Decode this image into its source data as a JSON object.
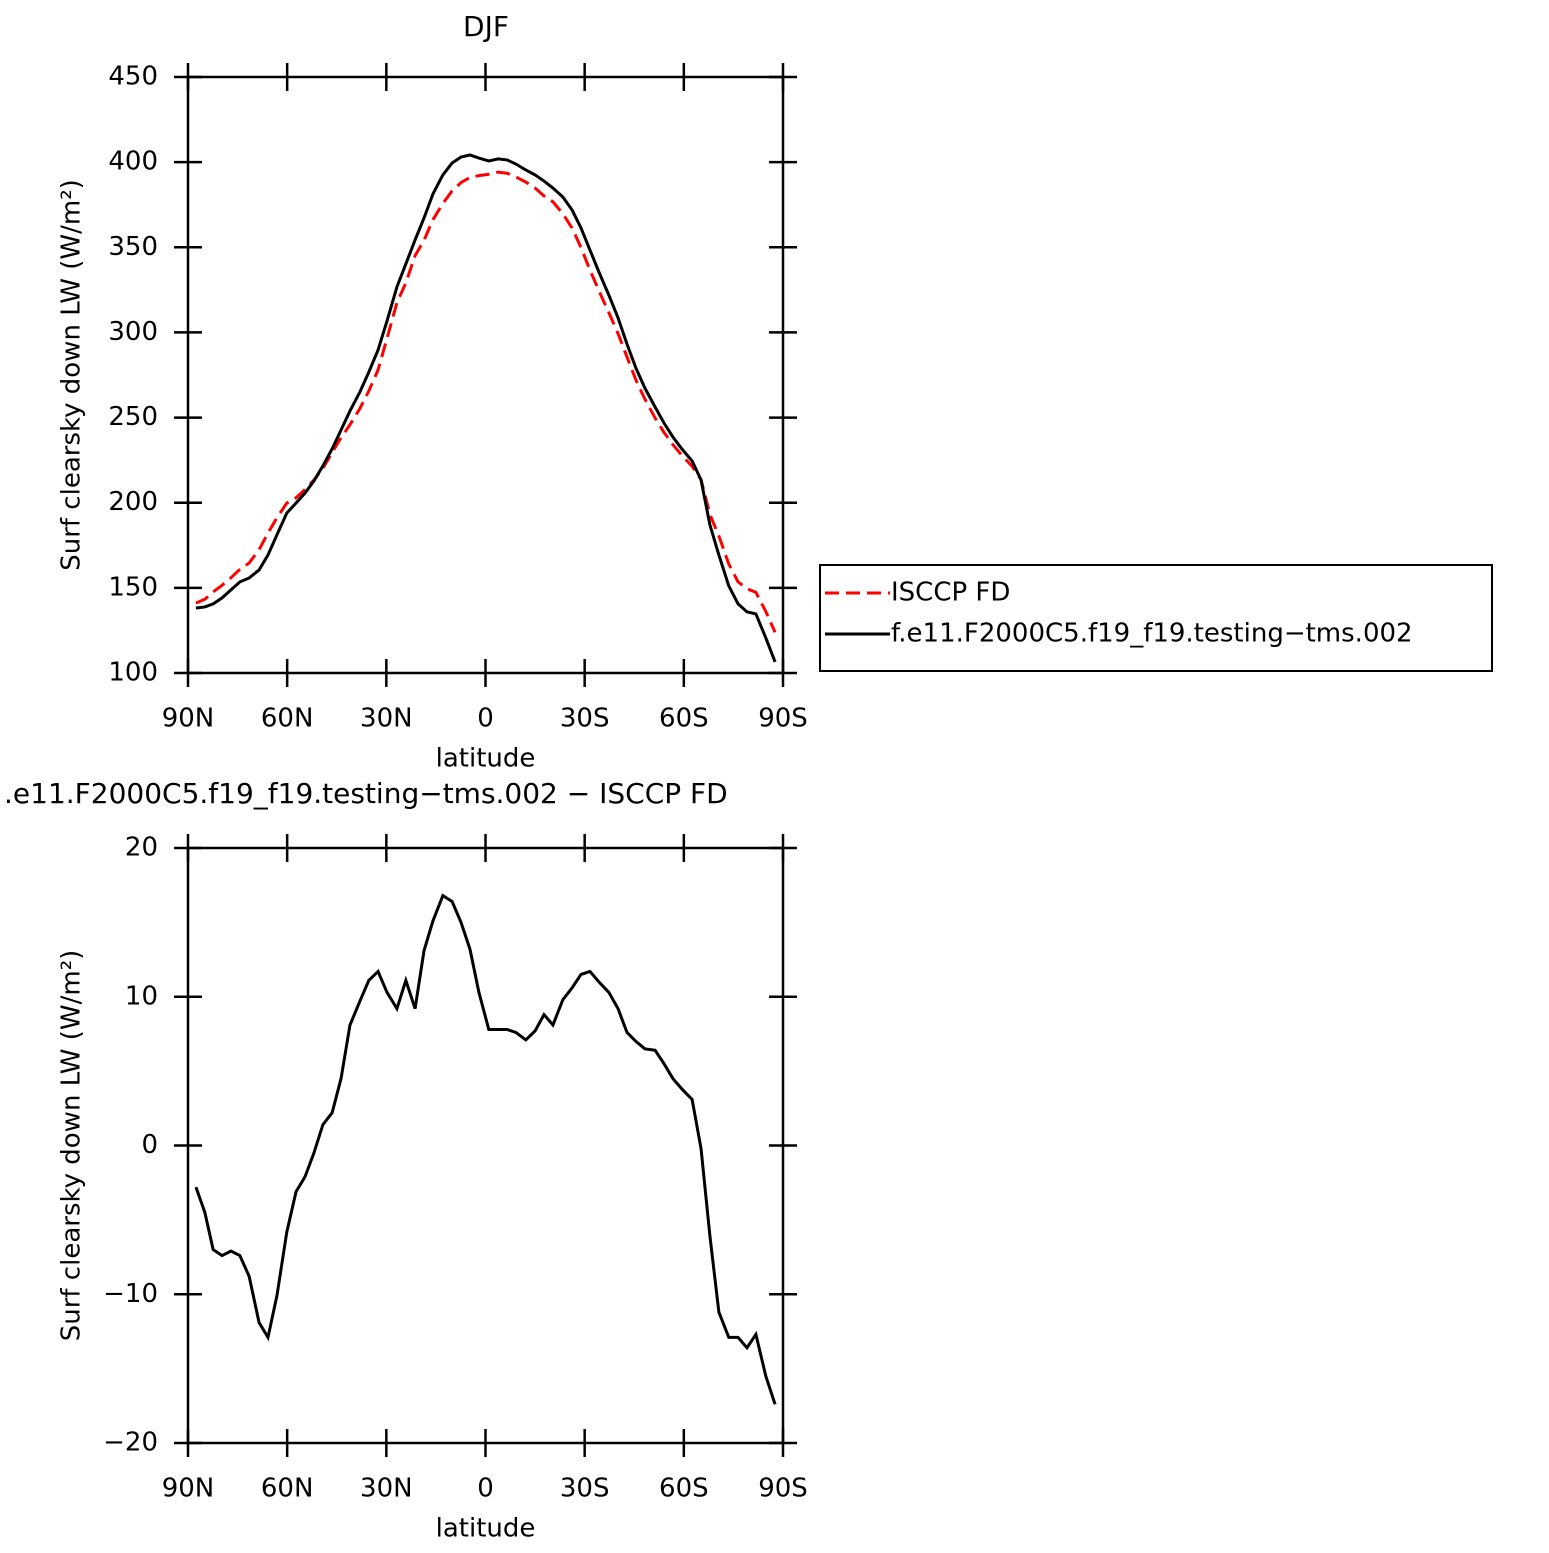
{
  "chart_data": [
    {
      "type": "line",
      "title": "DJF",
      "xlabel": "latitude",
      "ylabel": "Surf clearsky down LW (W/m²)",
      "xlim": [
        90,
        -90
      ],
      "xticks": [
        {
          "value": 90,
          "label": "90N"
        },
        {
          "value": 60,
          "label": "60N"
        },
        {
          "value": 30,
          "label": "30N"
        },
        0,
        {
          "value": -30,
          "label": "30S"
        },
        {
          "value": -60,
          "label": "60S"
        },
        {
          "value": -90,
          "label": "90S"
        }
      ],
      "ylim": [
        100,
        450
      ],
      "yticks": [
        100,
        150,
        200,
        250,
        300,
        350,
        400,
        450
      ],
      "legend": "right",
      "x": [
        87.6,
        84.9,
        82.4,
        79.7,
        77.0,
        74.3,
        71.5,
        68.5,
        65.8,
        63.1,
        60.1,
        57.3,
        54.6,
        51.9,
        49.2,
        46.4,
        43.7,
        41.0,
        38.0,
        35.3,
        32.5,
        29.8,
        26.8,
        24.1,
        21.3,
        18.6,
        15.9,
        12.9,
        10.1,
        7.4,
        4.7,
        2.0,
        -1.0,
        -3.8,
        -6.5,
        -9.2,
        -12.2,
        -15.0,
        -17.7,
        -20.4,
        -23.4,
        -26.2,
        -28.9,
        -31.6,
        -34.3,
        -37.3,
        -40.1,
        -42.8,
        -45.5,
        -48.2,
        -51.3,
        -54.0,
        -56.7,
        -59.4,
        -62.5,
        -65.2,
        -67.9,
        -70.6,
        -73.6,
        -76.4,
        -79.1,
        -81.8,
        -84.8,
        -87.6
      ],
      "series": [
        {
          "name": "ISCCP FD",
          "color": "#ff0000",
          "linestyle": "dashed",
          "values": [
            141.0,
            143.3,
            147.6,
            151.5,
            155.9,
            160.9,
            164.6,
            172.4,
            182.2,
            191.2,
            199.8,
            202.9,
            207.8,
            213.3,
            220.2,
            229.4,
            238.2,
            245.8,
            255.3,
            265.6,
            278.0,
            296.4,
            317.5,
            329.1,
            345.1,
            354.1,
            366.2,
            375.7,
            383.1,
            388.0,
            391.0,
            392.1,
            392.9,
            394.1,
            393.5,
            391.3,
            388.3,
            384.8,
            380.1,
            376.7,
            369.7,
            361.3,
            349.8,
            336.7,
            324.5,
            311.7,
            299.3,
            285.6,
            272.1,
            260.9,
            249.8,
            241.3,
            234.1,
            227.8,
            221.4,
            213.6,
            193.0,
            180.5,
            164.0,
            153.5,
            149.5,
            147.4,
            136.1,
            123.9
          ]
        },
        {
          "name": "f.e11.F2000C5.f19_f19.testing−tms.002",
          "color": "#000000",
          "linestyle": "solid",
          "values": [
            138.2,
            138.8,
            140.6,
            144.1,
            148.8,
            153.5,
            155.8,
            160.5,
            169.3,
            181.1,
            194.0,
            199.8,
            205.7,
            212.8,
            221.6,
            231.6,
            242.7,
            253.9,
            265.0,
            276.7,
            289.7,
            306.7,
            326.7,
            340.2,
            354.3,
            367.2,
            381.3,
            392.5,
            399.5,
            403.0,
            404.2,
            402.4,
            400.7,
            401.9,
            401.3,
            398.9,
            395.4,
            392.5,
            388.9,
            384.8,
            379.5,
            371.9,
            361.3,
            348.4,
            335.5,
            322.0,
            308.5,
            293.2,
            279.1,
            267.4,
            256.2,
            246.8,
            238.6,
            231.6,
            224.5,
            213.4,
            186.9,
            169.3,
            151.1,
            140.6,
            135.9,
            134.7,
            120.6,
            106.5
          ]
        }
      ]
    },
    {
      "type": "line",
      "title": ".e11.F2000C5.f19_f19.testing−tms.002 − ISCCP FD",
      "xlabel": "latitude",
      "ylabel": "Surf clearsky down LW (W/m²)",
      "xlim": [
        90,
        -90
      ],
      "xticks": [
        {
          "value": 90,
          "label": "90N"
        },
        {
          "value": 60,
          "label": "60N"
        },
        {
          "value": 30,
          "label": "30N"
        },
        0,
        {
          "value": -30,
          "label": "30S"
        },
        {
          "value": -60,
          "label": "60S"
        },
        {
          "value": -90,
          "label": "90S"
        }
      ],
      "ylim": [
        -20,
        20
      ],
      "yticks": [
        {
          "value": -20,
          "label": "−20"
        },
        {
          "value": -10,
          "label": "−10"
        },
        0,
        10,
        20
      ],
      "color": "#000000",
      "x": [
        87.6,
        84.9,
        82.4,
        79.7,
        77.0,
        74.3,
        71.5,
        68.5,
        65.8,
        63.1,
        60.1,
        57.3,
        54.6,
        51.9,
        49.2,
        46.4,
        43.7,
        41.0,
        38.0,
        35.3,
        32.5,
        29.8,
        26.8,
        24.1,
        21.3,
        18.6,
        15.9,
        12.9,
        10.1,
        7.4,
        4.7,
        2.0,
        -1.0,
        -3.8,
        -6.5,
        -9.2,
        -12.2,
        -15.0,
        -17.7,
        -20.4,
        -23.4,
        -26.2,
        -28.9,
        -31.6,
        -34.3,
        -37.3,
        -40.1,
        -42.8,
        -45.5,
        -48.2,
        -51.3,
        -54.0,
        -56.7,
        -59.4,
        -62.5,
        -65.2,
        -67.9,
        -70.6,
        -73.6,
        -76.4,
        -79.1,
        -81.8,
        -84.8,
        -87.6
      ],
      "values": [
        -2.8,
        -4.5,
        -7.0,
        -7.4,
        -7.1,
        -7.4,
        -8.8,
        -11.9,
        -12.9,
        -10.1,
        -5.8,
        -3.1,
        -2.1,
        -0.5,
        1.4,
        2.2,
        4.5,
        8.1,
        9.7,
        11.1,
        11.7,
        10.3,
        9.2,
        11.1,
        9.2,
        13.1,
        15.1,
        16.8,
        16.4,
        15.0,
        13.2,
        10.3,
        7.8,
        7.8,
        7.8,
        7.6,
        7.1,
        7.7,
        8.8,
        8.1,
        9.8,
        10.6,
        11.5,
        11.7,
        11.0,
        10.3,
        9.2,
        7.6,
        7.0,
        6.5,
        6.4,
        5.5,
        4.5,
        3.8,
        3.1,
        -0.2,
        -6.1,
        -11.2,
        -12.9,
        -12.9,
        -13.6,
        -12.7,
        -15.5,
        -17.4
      ]
    }
  ]
}
